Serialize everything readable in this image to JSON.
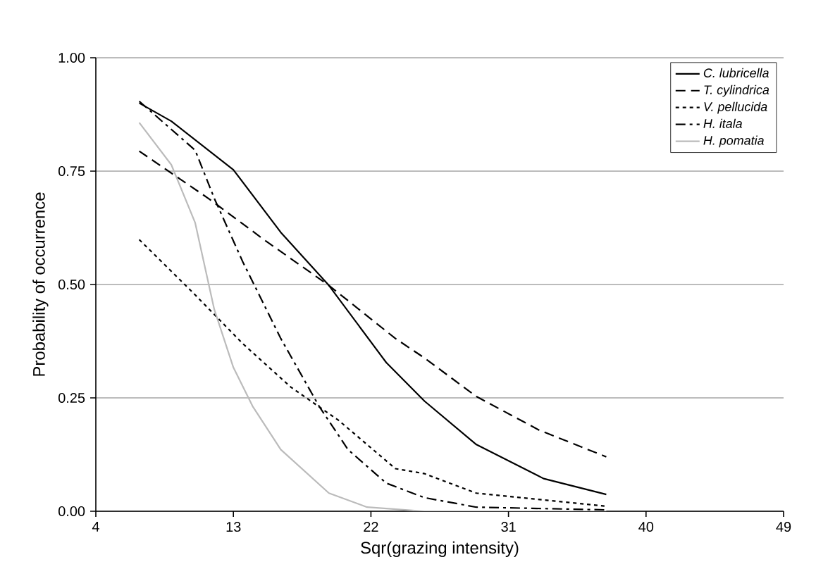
{
  "chart_data": {
    "type": "line",
    "xlabel": "Sqr(grazing intensity)",
    "ylabel": "Probability of occurrence",
    "xlim": [
      4,
      49
    ],
    "xticks": [
      4,
      13,
      22,
      31,
      40,
      49
    ],
    "ylim": [
      0,
      1
    ],
    "yticks": [
      {
        "value": 0,
        "label": "0.00"
      },
      {
        "value": 0.25,
        "label": "0.25"
      },
      {
        "value": 0.5,
        "label": "0.50"
      },
      {
        "value": 0.75,
        "label": "0.75"
      },
      {
        "value": 1,
        "label": "1.00"
      }
    ],
    "grid": "y",
    "legend": "top right",
    "marker": "none",
    "series": [
      {
        "name": "C. lubricella",
        "color": "#000000",
        "line_style": "solid",
        "x": [
          6.84,
          8.94,
          13,
          16.1,
          19.25,
          23,
          25.5,
          28.9,
          33.3,
          37.4
        ],
        "values": [
          0.9,
          0.86,
          0.753,
          0.615,
          0.498,
          0.328,
          0.243,
          0.147,
          0.072,
          0.037
        ]
      },
      {
        "name": "T. cylindrica",
        "color": "#000000",
        "line_style": "dashed",
        "x": [
          6.84,
          11.4,
          15.2,
          19.25,
          23.6,
          25.5,
          28.9,
          33,
          37.4
        ],
        "values": [
          0.794,
          0.689,
          0.594,
          0.498,
          0.381,
          0.338,
          0.253,
          0.179,
          0.12
        ]
      },
      {
        "name": "V. pellucida",
        "color": "#000000",
        "line_style": "dotted",
        "x": [
          6.84,
          10.5,
          13.6,
          16.75,
          19.9,
          23.6,
          25.5,
          28.9,
          37.4
        ],
        "values": [
          0.599,
          0.477,
          0.37,
          0.274,
          0.2,
          0.094,
          0.083,
          0.04,
          0.011
        ]
      },
      {
        "name": "H. itala",
        "color": "#000000",
        "line_style": "dashdot",
        "x": [
          6.84,
          10.5,
          11.75,
          13.6,
          16.1,
          18.6,
          20.5,
          23,
          25.5,
          28.9,
          37.4
        ],
        "values": [
          0.904,
          0.796,
          0.69,
          0.551,
          0.381,
          0.232,
          0.136,
          0.062,
          0.03,
          0.009,
          0.003
        ]
      },
      {
        "name": "H. pomatia",
        "color": "#bbbbbb",
        "line_style": "solid",
        "x": [
          6.84,
          8.94,
          10.5,
          11.75,
          13,
          14.25,
          16.1,
          19.25,
          21.75,
          25.5,
          37.4
        ],
        "values": [
          0.857,
          0.764,
          0.636,
          0.445,
          0.317,
          0.232,
          0.136,
          0.04,
          0.009,
          0,
          0
        ]
      }
    ]
  }
}
